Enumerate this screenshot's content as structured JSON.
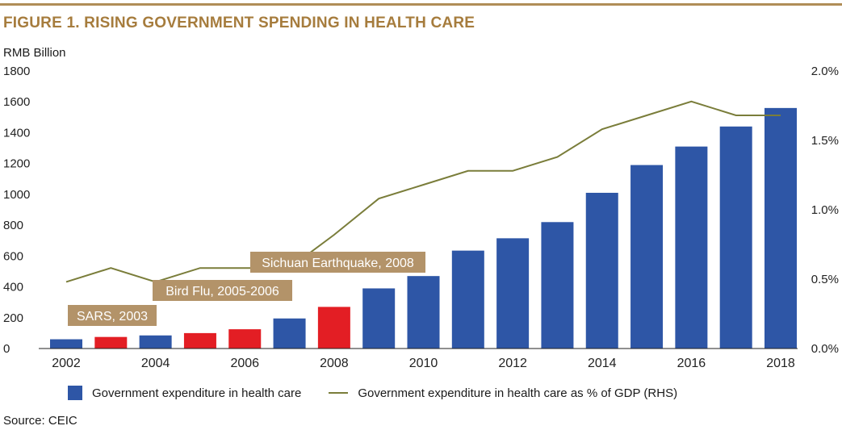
{
  "header": {
    "title": "FIGURE 1. RISING GOVERNMENT SPENDING IN HEALTH CARE",
    "left_unit": "RMB Billion"
  },
  "footer": {
    "source": "Source: CEIC"
  },
  "colors": {
    "accent": "#a67c3d",
    "rule": "#b08d57",
    "bar_normal": "#2e56a6",
    "bar_highlight": "#e31e24",
    "line": "#7a7d3a",
    "annotation_bg": "#b39369",
    "annotation_text": "#ffffff",
    "axis": "#222222"
  },
  "chart_data": {
    "type": "bar",
    "x": [
      2002,
      2003,
      2004,
      2005,
      2006,
      2007,
      2008,
      2009,
      2010,
      2011,
      2012,
      2013,
      2014,
      2015,
      2016,
      2017,
      2018
    ],
    "x_tick_labels": [
      "2002",
      "2004",
      "2006",
      "2008",
      "2010",
      "2012",
      "2014",
      "2016",
      "2018"
    ],
    "series": [
      {
        "name": "Government expenditure in health care",
        "type": "bar",
        "axis": "left",
        "values": [
          60,
          75,
          85,
          100,
          125,
          195,
          270,
          390,
          470,
          635,
          715,
          820,
          1010,
          1190,
          1310,
          1440,
          1560
        ],
        "highlight_years": [
          2003,
          2005,
          2006,
          2008
        ]
      },
      {
        "name": "Government expenditure in health care as % of GDP (RHS)",
        "type": "line",
        "axis": "right",
        "values": [
          0.48,
          0.58,
          0.48,
          0.58,
          0.58,
          0.58,
          0.82,
          1.08,
          1.18,
          1.28,
          1.28,
          1.38,
          1.58,
          1.68,
          1.78,
          1.68,
          1.68
        ]
      }
    ],
    "y_left": {
      "ylim": [
        0,
        1800
      ],
      "ticks": [
        0,
        200,
        400,
        600,
        800,
        1000,
        1200,
        1400,
        1600,
        1800
      ]
    },
    "y_right": {
      "ylim": [
        0,
        2.0
      ],
      "ticks": [
        "0.0%",
        "0.5%",
        "1.0%",
        "1.5%",
        "2.0%"
      ]
    },
    "annotations": [
      {
        "text": "SARS, 2003",
        "x": 2003
      },
      {
        "text": "Bird Flu, 2005-2006",
        "x": 2005.5
      },
      {
        "text": "Sichuan Earthquake, 2008",
        "x": 2008
      }
    ],
    "grid": false,
    "legend": "bottom"
  }
}
